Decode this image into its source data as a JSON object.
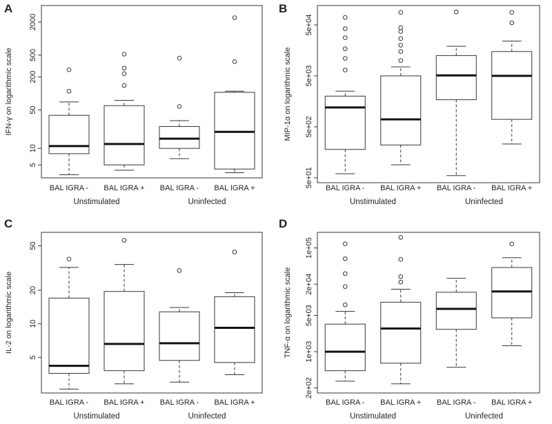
{
  "chart_data": [
    {
      "panel": "A",
      "type": "boxplot",
      "ylabel": "IFN-γ on logarithmic scale",
      "ylim": [
        2.9,
        4000
      ],
      "yscale": "log",
      "yticks": [
        5,
        10,
        50,
        200,
        500,
        2000
      ],
      "ytick_labels": [
        "5",
        "10",
        "50",
        "200",
        "500",
        "2000"
      ],
      "categories": [
        "BAL IGRA -",
        "BAL IGRA +",
        "BAL IGRA -",
        "BAL IGRA +"
      ],
      "groups": [
        "Unstimulated",
        "Uninfected"
      ],
      "boxes": [
        {
          "whisker_low": 3.3,
          "q1": 8,
          "median": 11,
          "q3": 40,
          "whisker_high": 70,
          "outliers": [
            110,
            270
          ]
        },
        {
          "whisker_low": 4.0,
          "q1": 5,
          "median": 12,
          "q3": 60,
          "whisker_high": 75,
          "outliers": [
            140,
            230,
            290,
            520
          ]
        },
        {
          "whisker_low": 6.5,
          "q1": 10,
          "median": 15,
          "q3": 25,
          "whisker_high": 32,
          "outliers": [
            58,
            440
          ]
        },
        {
          "whisker_low": 3.6,
          "q1": 4.2,
          "median": 20,
          "q3": 105,
          "whisker_high": 110,
          "outliers": [
            380,
            2400
          ]
        }
      ]
    },
    {
      "panel": "B",
      "type": "boxplot",
      "ylabel": "MIP-1α on logarithmic scale",
      "ylim": [
        40,
        120000
      ],
      "yscale": "log",
      "yticks": [
        50,
        500,
        5000,
        50000
      ],
      "ytick_labels": [
        "5e+01",
        "5e+02",
        "5e+03",
        "5e+04"
      ],
      "categories": [
        "BAL IGRA -",
        "BAL IGRA +",
        "BAL IGRA -",
        "BAL IGRA +"
      ],
      "groups": [
        "Unstimulated",
        "Uninfected"
      ],
      "boxes": [
        {
          "whisker_low": 60,
          "q1": 180,
          "median": 1200,
          "q3": 2000,
          "whisker_high": 2500,
          "outliers": [
            6500,
            11000,
            17000,
            28000,
            42000,
            70000
          ]
        },
        {
          "whisker_low": 90,
          "q1": 220,
          "median": 700,
          "q3": 5000,
          "whisker_high": 7500,
          "outliers": [
            10000,
            15000,
            20000,
            27000,
            37000,
            44000,
            88000
          ]
        },
        {
          "whisker_low": 55,
          "q1": 1700,
          "median": 5100,
          "q3": 12500,
          "whisker_high": 19000,
          "outliers": [
            90000
          ]
        },
        {
          "whisker_low": 230,
          "q1": 700,
          "median": 5000,
          "q3": 15000,
          "whisker_high": 24000,
          "outliers": [
            55000,
            88000
          ]
        }
      ]
    },
    {
      "panel": "C",
      "type": "boxplot",
      "ylabel": "IL-2 on logarithmic scale",
      "ylim": [
        2.4,
        66
      ],
      "yscale": "log",
      "yticks": [
        5,
        10,
        20,
        50
      ],
      "ytick_labels": [
        "5",
        "10",
        "20",
        "50"
      ],
      "categories": [
        "BAL IGRA -",
        "BAL IGRA +",
        "BAL IGRA -",
        "BAL IGRA +"
      ],
      "groups": [
        "Unstimulated",
        "Uninfected"
      ],
      "boxes": [
        {
          "whisker_low": 2.6,
          "q1": 3.6,
          "median": 4.2,
          "q3": 17,
          "whisker_high": 32,
          "outliers": [
            38
          ]
        },
        {
          "whisker_low": 2.9,
          "q1": 3.8,
          "median": 6.6,
          "q3": 19.5,
          "whisker_high": 34,
          "outliers": [
            56
          ]
        },
        {
          "whisker_low": 3.0,
          "q1": 4.7,
          "median": 6.7,
          "q3": 12.8,
          "whisker_high": 14,
          "outliers": [
            30
          ]
        },
        {
          "whisker_low": 3.5,
          "q1": 4.5,
          "median": 9.2,
          "q3": 17.5,
          "whisker_high": 19,
          "outliers": [
            44
          ]
        }
      ]
    },
    {
      "panel": "D",
      "type": "boxplot",
      "ylabel": "TNF-α on logarithmic scale",
      "ylim": [
        160,
        200000
      ],
      "yscale": "log",
      "yticks": [
        200,
        1000,
        5000,
        20000,
        100000
      ],
      "ytick_labels": [
        "2e+02",
        "1e+03",
        "5e+03",
        "2e+04",
        "1e+05"
      ],
      "categories": [
        "BAL IGRA -",
        "BAL IGRA +",
        "BAL IGRA -",
        "BAL IGRA +"
      ],
      "groups": [
        "Unstimulated",
        "Uninfected"
      ],
      "boxes": [
        {
          "whisker_low": 270,
          "q1": 430,
          "median": 1000,
          "q3": 3400,
          "whisker_high": 6000,
          "outliers": [
            8000,
            18000,
            32000,
            62000,
            120000
          ]
        },
        {
          "whisker_low": 240,
          "q1": 600,
          "median": 2800,
          "q3": 9000,
          "whisker_high": 16000,
          "outliers": [
            22000,
            28000,
            60000,
            160000
          ]
        },
        {
          "whisker_low": 500,
          "q1": 2700,
          "median": 6700,
          "q3": 14000,
          "whisker_high": 26000,
          "outliers": []
        },
        {
          "whisker_low": 1300,
          "q1": 4500,
          "median": 14500,
          "q3": 42000,
          "whisker_high": 65000,
          "outliers": [
            120000
          ]
        }
      ]
    }
  ]
}
